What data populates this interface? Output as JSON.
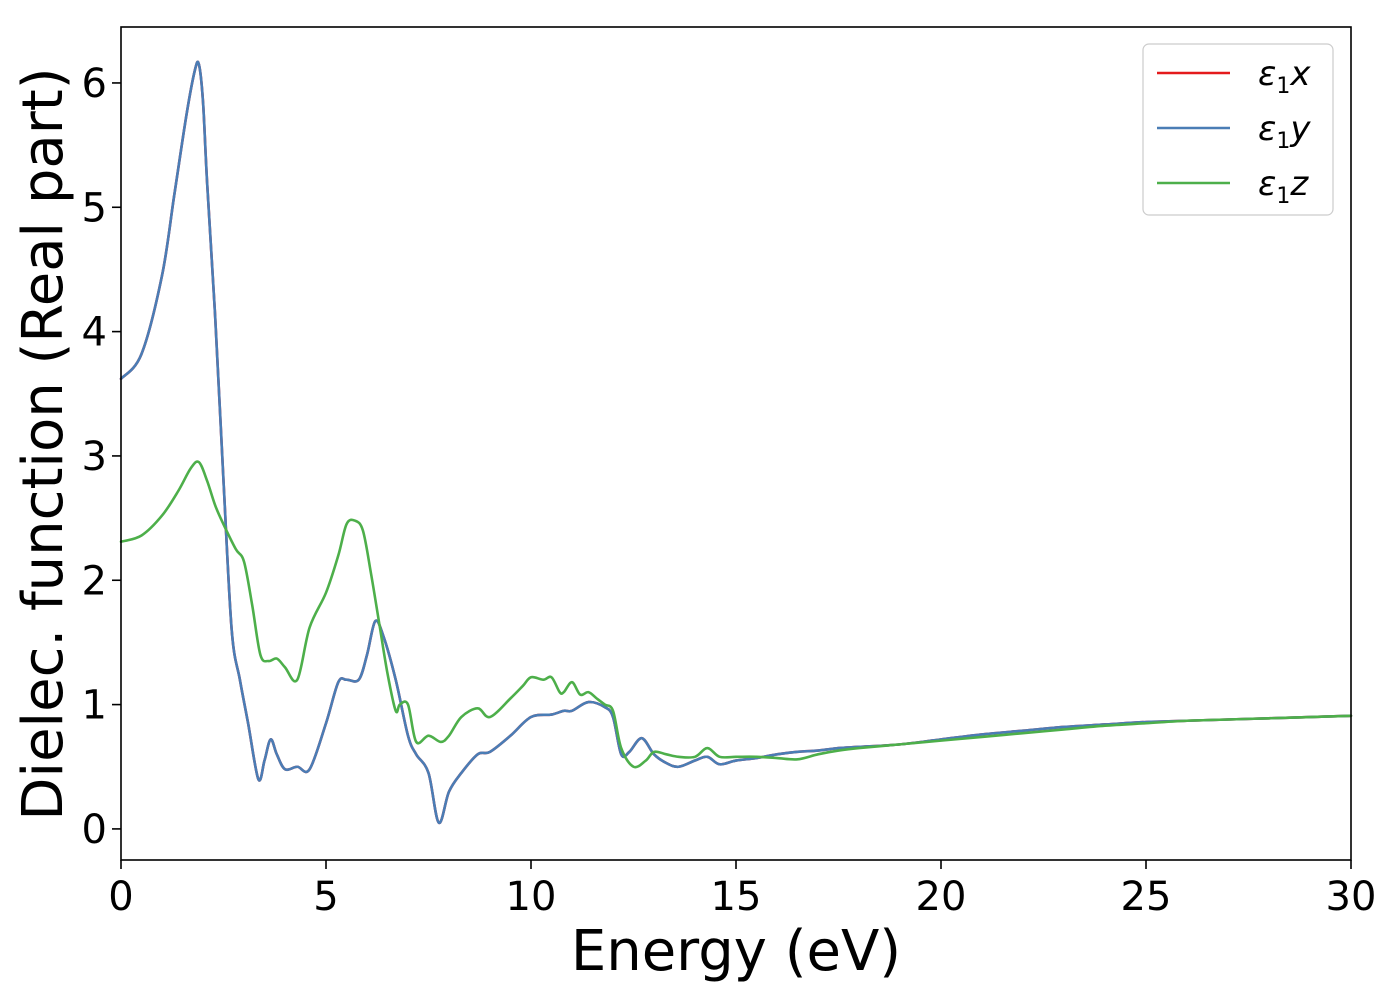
{
  "chart_data": {
    "type": "line",
    "title": "",
    "xlabel": "Energy (eV)",
    "ylabel": "Dielec. function (Real part)",
    "xlim": [
      0,
      30
    ],
    "ylim": [
      -0.25,
      6.45
    ],
    "xticks": [
      0,
      5,
      10,
      15,
      20,
      25,
      30
    ],
    "yticks": [
      0,
      1,
      2,
      3,
      4,
      5,
      6
    ],
    "grid": false,
    "legend_position": "top-right",
    "series": [
      {
        "name": "ε1x",
        "legend": {
          "symbol": "ε",
          "sub": "1",
          "var": "x"
        },
        "color": "#e41a1c",
        "x": [
          0,
          0.5,
          1.0,
          1.3,
          1.6,
          1.8,
          1.9,
          2.0,
          2.1,
          2.3,
          2.5,
          2.7,
          2.9,
          3.1,
          3.35,
          3.5,
          3.65,
          3.8,
          4.0,
          4.3,
          4.6,
          5.0,
          5.3,
          5.5,
          5.8,
          6.0,
          6.2,
          6.4,
          6.7,
          7.0,
          7.2,
          7.5,
          7.75,
          8.0,
          8.3,
          8.7,
          9.0,
          9.5,
          10.0,
          10.5,
          10.8,
          11.0,
          11.4,
          11.8,
          12.0,
          12.2,
          12.4,
          12.7,
          13.0,
          13.3,
          13.6,
          14.0,
          14.3,
          14.6,
          15.0,
          15.5,
          16.0,
          16.5,
          17.0,
          17.5,
          18.0,
          19.0,
          20.0,
          21.0,
          22.0,
          23.0,
          24.0,
          25.0,
          26.0,
          27.0,
          28.0,
          29.0,
          30.0
        ],
        "y": [
          3.62,
          3.82,
          4.45,
          5.1,
          5.75,
          6.1,
          6.15,
          5.85,
          5.2,
          4.1,
          2.8,
          1.6,
          1.2,
          0.85,
          0.4,
          0.55,
          0.72,
          0.6,
          0.48,
          0.5,
          0.48,
          0.85,
          1.18,
          1.2,
          1.2,
          1.4,
          1.67,
          1.55,
          1.2,
          0.75,
          0.6,
          0.45,
          0.05,
          0.3,
          0.45,
          0.6,
          0.62,
          0.75,
          0.9,
          0.92,
          0.95,
          0.95,
          1.02,
          0.98,
          0.9,
          0.6,
          0.62,
          0.73,
          0.6,
          0.53,
          0.5,
          0.55,
          0.58,
          0.52,
          0.55,
          0.57,
          0.6,
          0.62,
          0.63,
          0.65,
          0.66,
          0.68,
          0.72,
          0.76,
          0.79,
          0.82,
          0.84,
          0.86,
          0.87,
          0.88,
          0.89,
          0.9,
          0.91
        ]
      },
      {
        "name": "ε1y",
        "legend": {
          "symbol": "ε",
          "sub": "1",
          "var": "y"
        },
        "color": "#4a7db5",
        "x": [
          0,
          0.5,
          1.0,
          1.3,
          1.6,
          1.8,
          1.9,
          2.0,
          2.1,
          2.3,
          2.5,
          2.7,
          2.9,
          3.1,
          3.35,
          3.5,
          3.65,
          3.8,
          4.0,
          4.3,
          4.6,
          5.0,
          5.3,
          5.5,
          5.8,
          6.0,
          6.2,
          6.4,
          6.7,
          7.0,
          7.2,
          7.5,
          7.75,
          8.0,
          8.3,
          8.7,
          9.0,
          9.5,
          10.0,
          10.5,
          10.8,
          11.0,
          11.4,
          11.8,
          12.0,
          12.2,
          12.4,
          12.7,
          13.0,
          13.3,
          13.6,
          14.0,
          14.3,
          14.6,
          15.0,
          15.5,
          16.0,
          16.5,
          17.0,
          17.5,
          18.0,
          19.0,
          20.0,
          21.0,
          22.0,
          23.0,
          24.0,
          25.0,
          26.0,
          27.0,
          28.0,
          29.0,
          30.0
        ],
        "y": [
          3.62,
          3.82,
          4.45,
          5.1,
          5.75,
          6.1,
          6.15,
          5.85,
          5.2,
          4.1,
          2.8,
          1.6,
          1.2,
          0.85,
          0.4,
          0.55,
          0.72,
          0.6,
          0.48,
          0.5,
          0.48,
          0.85,
          1.18,
          1.2,
          1.2,
          1.4,
          1.67,
          1.55,
          1.2,
          0.75,
          0.6,
          0.45,
          0.05,
          0.3,
          0.45,
          0.6,
          0.62,
          0.75,
          0.9,
          0.92,
          0.95,
          0.95,
          1.02,
          0.98,
          0.9,
          0.6,
          0.62,
          0.73,
          0.6,
          0.53,
          0.5,
          0.55,
          0.58,
          0.52,
          0.55,
          0.57,
          0.6,
          0.62,
          0.63,
          0.65,
          0.66,
          0.68,
          0.72,
          0.76,
          0.79,
          0.82,
          0.84,
          0.86,
          0.87,
          0.88,
          0.89,
          0.9,
          0.91
        ]
      },
      {
        "name": "ε1z",
        "legend": {
          "symbol": "ε",
          "sub": "1",
          "var": "z"
        },
        "color": "#4daf4a",
        "x": [
          0,
          0.5,
          1.0,
          1.4,
          1.7,
          1.9,
          2.1,
          2.3,
          2.5,
          2.8,
          3.0,
          3.2,
          3.4,
          3.6,
          3.8,
          4.0,
          4.3,
          4.6,
          5.0,
          5.3,
          5.5,
          5.7,
          5.9,
          6.1,
          6.3,
          6.5,
          6.7,
          6.8,
          7.0,
          7.2,
          7.5,
          7.8,
          8.0,
          8.3,
          8.7,
          9.0,
          9.5,
          9.8,
          10.0,
          10.3,
          10.5,
          10.7,
          10.8,
          11.0,
          11.2,
          11.4,
          11.6,
          11.8,
          12.0,
          12.2,
          12.5,
          12.8,
          13.0,
          13.3,
          13.6,
          14.0,
          14.3,
          14.6,
          15.0,
          15.5,
          16.0,
          16.5,
          17.0,
          17.5,
          18.0,
          19.0,
          20.0,
          21.0,
          22.0,
          23.0,
          24.0,
          25.0,
          26.0,
          27.0,
          28.0,
          29.0,
          30.0
        ],
        "y": [
          2.31,
          2.36,
          2.52,
          2.72,
          2.9,
          2.95,
          2.8,
          2.6,
          2.45,
          2.25,
          2.15,
          1.8,
          1.4,
          1.35,
          1.37,
          1.3,
          1.2,
          1.62,
          1.9,
          2.2,
          2.45,
          2.48,
          2.4,
          2.05,
          1.65,
          1.25,
          0.95,
          1.0,
          1.0,
          0.7,
          0.75,
          0.7,
          0.75,
          0.9,
          0.97,
          0.9,
          1.05,
          1.15,
          1.22,
          1.2,
          1.22,
          1.1,
          1.1,
          1.18,
          1.08,
          1.1,
          1.05,
          1.0,
          0.95,
          0.65,
          0.5,
          0.55,
          0.62,
          0.6,
          0.58,
          0.58,
          0.65,
          0.58,
          0.58,
          0.58,
          0.57,
          0.56,
          0.6,
          0.63,
          0.65,
          0.68,
          0.71,
          0.74,
          0.77,
          0.8,
          0.83,
          0.85,
          0.87,
          0.88,
          0.89,
          0.9,
          0.91
        ]
      }
    ]
  }
}
